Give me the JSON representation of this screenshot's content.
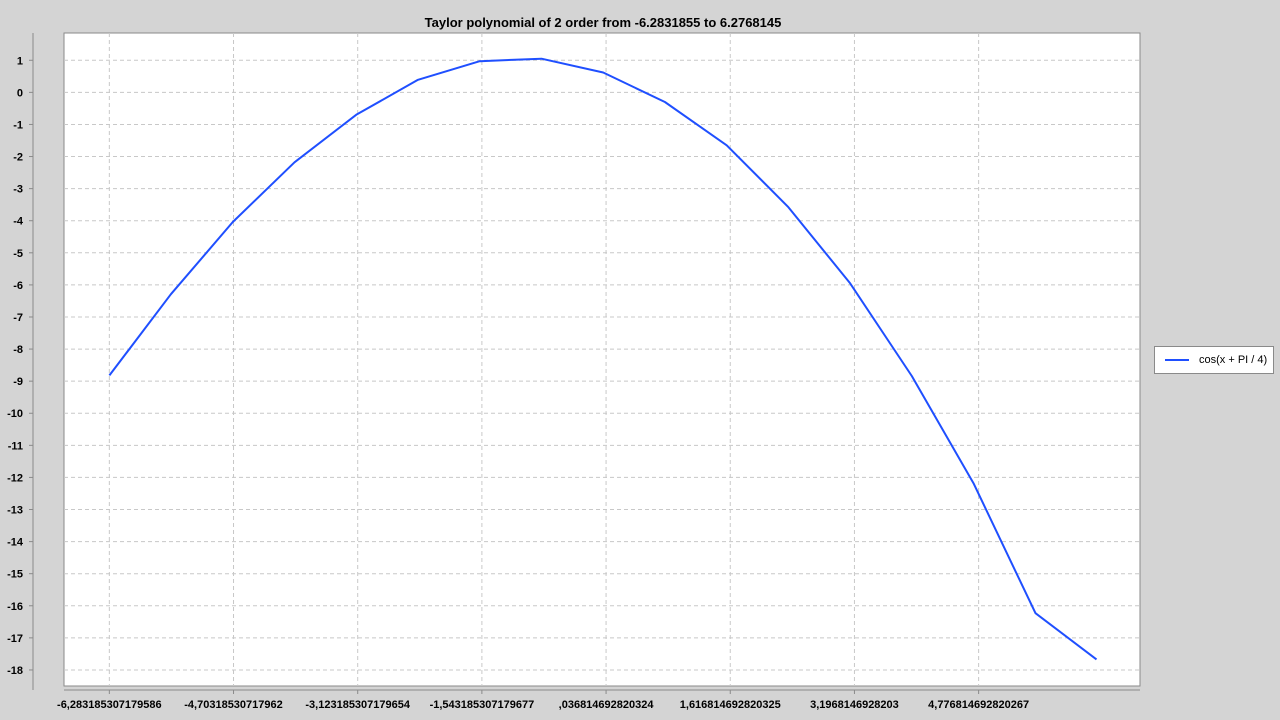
{
  "chart_data": {
    "type": "line",
    "title": "Taylor polynomial of 2 order from -6.2831855 to 6.2768145",
    "xlabel": "",
    "ylabel": "",
    "x_tick_labels": [
      "-6,283185307179586",
      "-4,70318530717962",
      "-3,123185307179654",
      "-1,543185307179677",
      ",036814692820324",
      "1,616814692820325",
      "3,1968146928203",
      "4,776814692820267"
    ],
    "y_tick_labels": [
      "1",
      "0",
      "-1",
      "-2",
      "-3",
      "-4",
      "-5",
      "-6",
      "-7",
      "-8",
      "-9",
      "-10",
      "-11",
      "-12",
      "-13",
      "-14",
      "-15",
      "-16",
      "-17",
      "-18"
    ],
    "xlim": [
      -6.86,
      6.83
    ],
    "ylim": [
      -18.5,
      1.85
    ],
    "grid": true,
    "legend_position": "right",
    "series": [
      {
        "name": "cos(x + PI / 4)",
        "color": "#1f4fff",
        "x": [
          -6.283,
          -5.5,
          -4.712,
          -3.927,
          -3.142,
          -2.356,
          -1.571,
          -0.785,
          0.0,
          0.785,
          1.571,
          2.356,
          3.142,
          3.927,
          4.712,
          5.5,
          6.277
        ],
        "y": [
          -8.82,
          -6.29,
          -4.04,
          -2.18,
          -0.7,
          0.39,
          0.97,
          1.05,
          0.62,
          -0.3,
          -1.65,
          -3.58,
          -5.95,
          -8.84,
          -12.18,
          -16.23,
          -17.67
        ]
      }
    ]
  }
}
